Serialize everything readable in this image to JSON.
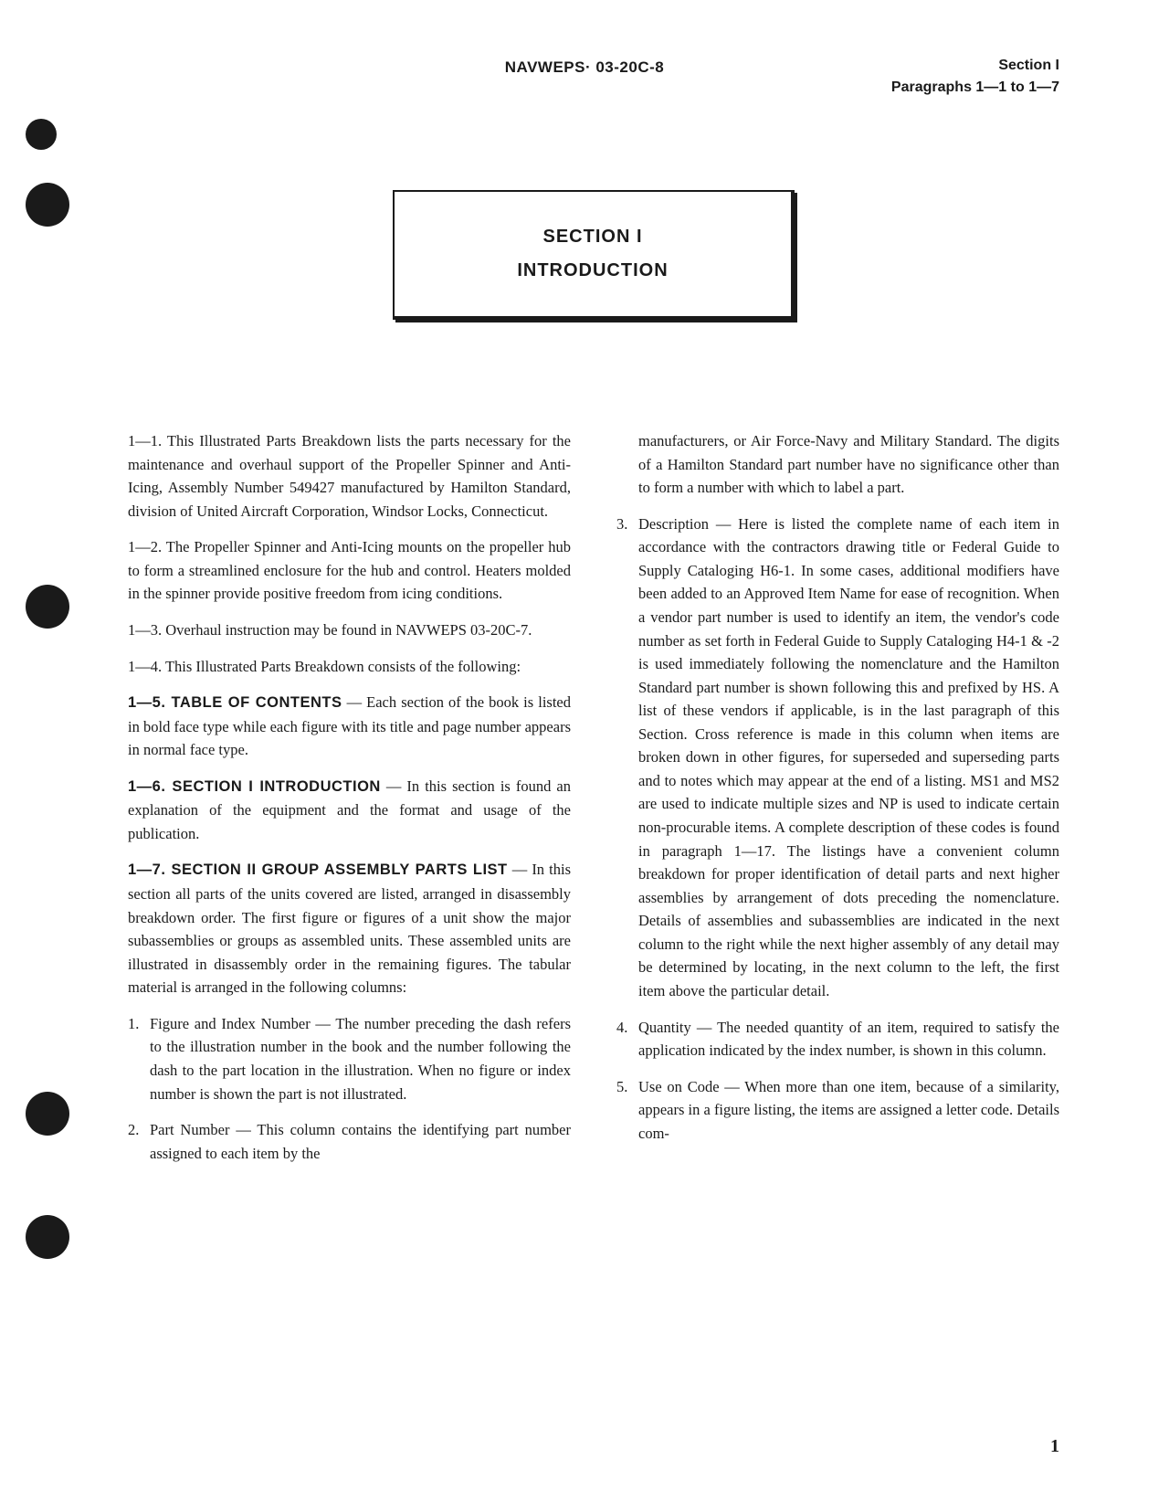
{
  "header": {
    "docNumber": "NAVWEPS· 03-20C-8",
    "sectionLabel": "Section I",
    "paragraphRange": "Paragraphs 1—1 to 1—7"
  },
  "sectionBox": {
    "number": "SECTION I",
    "title": "INTRODUCTION"
  },
  "col1": {
    "p1": "1—1. This Illustrated Parts Breakdown lists the parts necessary for the maintenance and overhaul support of the Propeller Spinner and Anti-Icing, Assembly Number 549427 manufactured by Hamilton Standard, division of United Aircraft Corporation, Windsor Locks, Connecticut.",
    "p2": "1—2. The Propeller Spinner and Anti-Icing mounts on the propeller hub to form a streamlined enclosure for the hub and control. Heaters molded in the spinner provide positive freedom from icing conditions.",
    "p3": "1—3. Overhaul instruction may be found in NAVWEPS 03-20C-7.",
    "p4": "1—4. This Illustrated Parts Breakdown consists of the following:",
    "p5Lead": "1—5. TABLE OF CONTENTS",
    "p5": " — Each section of the book is listed in bold face type while each figure with its title and page number appears in normal face type.",
    "p6Lead": "1—6. SECTION I INTRODUCTION",
    "p6": " — In this section is found an explanation of the equipment and the format and usage of the publication.",
    "p7Lead": "1—7. SECTION II GROUP ASSEMBLY PARTS LIST",
    "p7": " — In this section all parts of the units covered are listed, arranged in disassembly breakdown order. The first figure or figures of a unit show the major subassemblies or groups as assembled units. These assembled units are illustrated in disassembly order in the remaining figures. The tabular material is arranged in the following columns:",
    "li1Num": "1.",
    "li1": "Figure and Index Number — The number preceding the dash refers to the illustration number in the book and the number following the dash to the part location in the illustration. When no figure or index number is shown the part is not illustrated.",
    "li2Num": "2.",
    "li2": "Part Number — This column contains the identifying part number assigned to each item by the"
  },
  "col2": {
    "li2continue": "manufacturers, or Air Force-Navy and Military Standard. The digits of a Hamilton Standard part number have no significance other than to form a number with which to label a part.",
    "li3Num": "3.",
    "li3": "Description — Here is listed the complete name of each item in accordance with the contractors drawing title or Federal Guide to Supply Cataloging H6-1. In some cases, additional modifiers have been added to an Approved Item Name for ease of recognition. When a vendor part number is used to identify an item, the vendor's code number as set forth in Federal Guide to Supply Cataloging H4-1 & -2 is used immediately following the nomenclature and the Hamilton Standard part number is shown following this and prefixed by HS. A list of these vendors if applicable, is in the last paragraph of this Section. Cross reference is made in this column when items are broken down in other figures, for superseded and superseding parts and to notes which may appear at the end of a listing. MS1 and MS2 are used to indicate multiple sizes and NP is used to indicate certain non-procurable items. A complete description of these codes is found in paragraph 1—17. The listings have a convenient column breakdown for proper identification of detail parts and next higher assemblies by arrangement of dots preceding the nomenclature. Details of assemblies and subassemblies are indicated in the next column to the right while the next higher assembly of any detail may be determined by locating, in the next column to the left, the first item above the particular detail.",
    "li4Num": "4.",
    "li4": "Quantity — The needed quantity of an item, required to satisfy the application indicated by the index number, is shown in this column.",
    "li5Num": "5.",
    "li5": "Use on Code — When more than one item, because of a similarity, appears in a figure listing, the items are assigned a letter code. Details com-"
  },
  "pageNumber": "1"
}
